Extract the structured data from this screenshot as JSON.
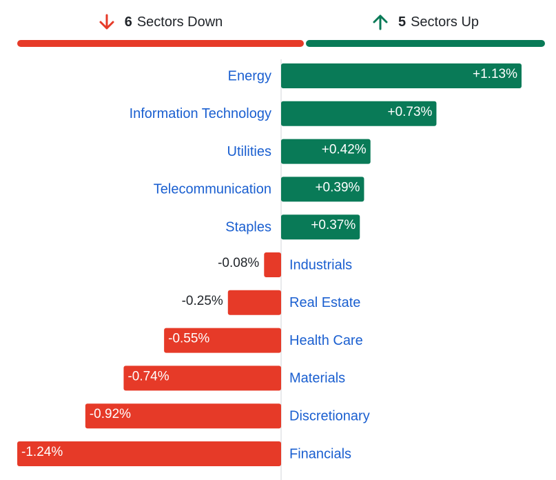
{
  "summary": {
    "down": {
      "count": "6",
      "label": "Sectors Down"
    },
    "up": {
      "count": "5",
      "label": "Sectors Up"
    }
  },
  "colors": {
    "positive": "#097a57",
    "negative": "#e63a28",
    "label": "#1a5fd0",
    "value_outside": "#1f2328",
    "value_inside": "#ffffff",
    "axis": "#d0d4d9"
  },
  "icons": {
    "down": "arrow-down-icon",
    "up": "arrow-up-icon"
  },
  "chart_data": {
    "type": "bar",
    "orientation": "horizontal",
    "categories": [
      "Energy",
      "Information Technology",
      "Utilities",
      "Telecommunication",
      "Staples",
      "Industrials",
      "Real Estate",
      "Health Care",
      "Materials",
      "Discretionary",
      "Financials"
    ],
    "values": [
      1.13,
      0.73,
      0.42,
      0.39,
      0.37,
      -0.08,
      -0.25,
      -0.55,
      -0.74,
      -0.92,
      -1.24
    ],
    "value_labels": [
      "+1.13%",
      "+0.73%",
      "+0.42%",
      "+0.39%",
      "+0.37%",
      "-0.08%",
      "-0.25%",
      "-0.55%",
      "-0.74%",
      "-0.92%",
      "-1.24%"
    ],
    "unit": "%",
    "xlim": [
      -1.24,
      1.13
    ]
  }
}
